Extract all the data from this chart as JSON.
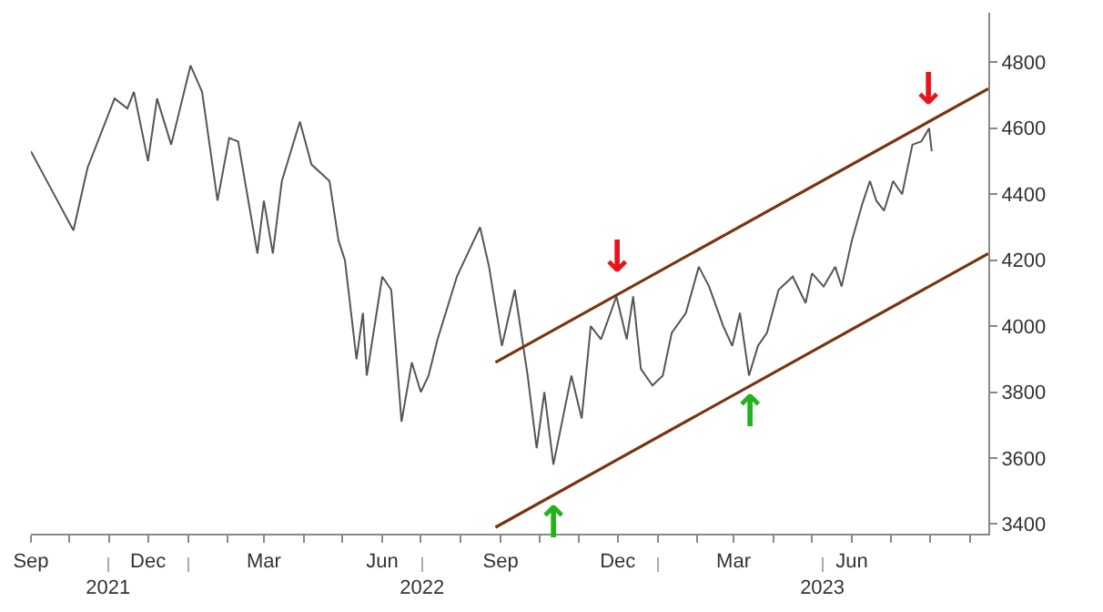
{
  "chart_data": {
    "type": "line",
    "x": [
      "2021-09-01",
      "2021-09-12",
      "2021-10-04",
      "2021-10-15",
      "2021-11-05",
      "2021-11-15",
      "2021-11-20",
      "2021-12-01",
      "2021-12-08",
      "2021-12-19",
      "2022-01-03",
      "2022-01-12",
      "2022-01-24",
      "2022-02-02",
      "2022-02-09",
      "2022-02-24",
      "2022-03-01",
      "2022-03-08",
      "2022-03-15",
      "2022-03-29",
      "2022-04-07",
      "2022-04-21",
      "2022-04-28",
      "2022-05-03",
      "2022-05-12",
      "2022-05-17",
      "2022-05-20",
      "2022-06-01",
      "2022-06-08",
      "2022-06-16",
      "2022-06-24",
      "2022-07-01",
      "2022-07-07",
      "2022-07-14",
      "2022-07-29",
      "2022-08-16",
      "2022-08-23",
      "2022-09-02",
      "2022-09-12",
      "2022-09-22",
      "2022-09-29",
      "2022-10-05",
      "2022-10-12",
      "2022-10-26",
      "2022-11-03",
      "2022-11-10",
      "2022-11-18",
      "2022-11-30",
      "2022-12-08",
      "2022-12-13",
      "2022-12-19",
      "2022-12-28",
      "2023-01-05",
      "2023-01-12",
      "2023-01-23",
      "2023-02-02",
      "2023-02-10",
      "2023-02-21",
      "2023-02-28",
      "2023-03-06",
      "2023-03-13",
      "2023-03-20",
      "2023-03-27",
      "2023-04-05",
      "2023-04-16",
      "2023-04-26",
      "2023-05-01",
      "2023-05-10",
      "2023-05-19",
      "2023-05-24",
      "2023-06-01",
      "2023-06-09",
      "2023-06-15",
      "2023-06-20",
      "2023-06-26",
      "2023-07-03",
      "2023-07-10",
      "2023-07-18",
      "2023-07-25",
      "2023-07-31",
      "2023-08-02"
    ],
    "series": [
      {
        "color": "#555555",
        "values": [
          4530,
          4450,
          4290,
          4480,
          4690,
          4660,
          4710,
          4500,
          4690,
          4550,
          4790,
          4710,
          4380,
          4570,
          4560,
          4220,
          4380,
          4220,
          4440,
          4620,
          4490,
          4440,
          4260,
          4200,
          3900,
          4040,
          3850,
          4150,
          4110,
          3710,
          3890,
          3800,
          3850,
          3960,
          4150,
          4300,
          4180,
          3940,
          4110,
          3850,
          3630,
          3800,
          3580,
          3850,
          3720,
          4000,
          3960,
          4090,
          3960,
          4090,
          3870,
          3820,
          3850,
          3980,
          4040,
          4180,
          4120,
          4000,
          3940,
          4040,
          3850,
          3940,
          3980,
          4110,
          4150,
          4070,
          4160,
          4120,
          4180,
          4120,
          4260,
          4370,
          4440,
          4380,
          4350,
          4440,
          4400,
          4550,
          4560,
          4600,
          4530
        ]
      },
      {
        "type": "line",
        "color": "#7a3410",
        "x": [
          "2022-08-28",
          "2023-09-15"
        ],
        "values": [
          3890,
          4720
        ]
      },
      {
        "type": "line",
        "color": "#7a3410",
        "x": [
          "2022-08-28",
          "2023-09-15"
        ],
        "values": [
          3390,
          4220
        ]
      }
    ],
    "annotations": [
      {
        "text": "↓",
        "x": "2022-11-30",
        "y": 4120
      },
      {
        "text": "↑",
        "x": "2022-10-12",
        "y": 3490
      },
      {
        "text": "↑",
        "x": "2023-03-13",
        "y": 3830
      },
      {
        "text": "↓",
        "x": "2023-07-31",
        "y": 4630
      }
    ],
    "xlim": [
      "2021-09-01",
      "2023-09-15"
    ],
    "xticks": [
      {
        "value": "2021-09-01",
        "label": "Sep"
      },
      {
        "value": "2021-10-01",
        "label": null
      },
      {
        "value": "2021-11-01",
        "label": null
      },
      {
        "value": "2021-12-01",
        "label": "Dec"
      },
      {
        "value": "2022-01-01",
        "label": null
      },
      {
        "value": "2022-02-01",
        "label": null
      },
      {
        "value": "2022-03-01",
        "label": "Mar"
      },
      {
        "value": "2022-04-01",
        "label": null
      },
      {
        "value": "2022-05-01",
        "label": null
      },
      {
        "value": "2022-06-01",
        "label": "Jun"
      },
      {
        "value": "2022-07-01",
        "label": null
      },
      {
        "value": "2022-08-01",
        "label": null
      },
      {
        "value": "2022-09-01",
        "label": "Sep"
      },
      {
        "value": "2022-10-01",
        "label": null
      },
      {
        "value": "2022-11-01",
        "label": null
      },
      {
        "value": "2022-12-01",
        "label": "Dec"
      },
      {
        "value": "2023-01-01",
        "label": null
      },
      {
        "value": "2023-02-01",
        "label": null
      },
      {
        "value": "2023-03-01",
        "label": "Mar"
      },
      {
        "value": "2023-04-01",
        "label": null
      },
      {
        "value": "2023-05-01",
        "label": null
      },
      {
        "value": "2023-06-01",
        "label": "Jun"
      },
      {
        "value": "2023-07-01",
        "label": null
      },
      {
        "value": "2023-08-01",
        "label": null
      },
      {
        "value": "2023-09-01",
        "label": null
      }
    ],
    "x2lim": [
      "2021-09-01",
      "2023-09-15"
    ],
    "x2ticks": [
      {
        "value": "2021-10-31",
        "label": "2021"
      },
      {
        "value": "2022-01-01",
        "label": null
      },
      {
        "value": "2022-07-02",
        "label": "2022"
      },
      {
        "value": "2023-01-01",
        "label": null
      },
      {
        "value": "2023-05-09",
        "label": "2023"
      }
    ],
    "ylim": [
      3370,
      4950
    ],
    "yticks": [
      3400,
      3600,
      3800,
      4000,
      4200,
      4400,
      4600,
      4800
    ],
    "grid": false,
    "marker": "none",
    "line_style": "solid"
  }
}
